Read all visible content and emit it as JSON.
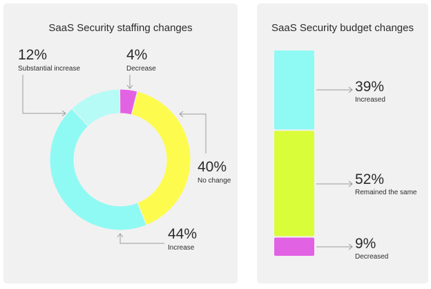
{
  "chart_data": [
    {
      "type": "pie",
      "variant": "donut",
      "title": "SaaS Security staffing changes",
      "slices": [
        {
          "label": "Decrease",
          "value": 4,
          "display": "4%",
          "color": "#e262e4"
        },
        {
          "label": "No change",
          "value": 40,
          "display": "40%",
          "color": "#fdfc4e"
        },
        {
          "label": "Increase",
          "value": 44,
          "display": "44%",
          "color": "#8ffaf3"
        },
        {
          "label": "Substantial increase",
          "value": 12,
          "display": "12%",
          "color": "#b6fbf6"
        }
      ]
    },
    {
      "type": "bar",
      "variant": "stacked-single",
      "title": "SaaS Security budget changes",
      "segments": [
        {
          "label": "Increased",
          "value": 39,
          "display": "39%",
          "color": "#8ffaf3"
        },
        {
          "label": "Remained the same",
          "value": 52,
          "display": "52%",
          "color": "#dafd3a"
        },
        {
          "label": "Decreased",
          "value": 9,
          "display": "9%",
          "color": "#e262e4"
        }
      ]
    }
  ]
}
